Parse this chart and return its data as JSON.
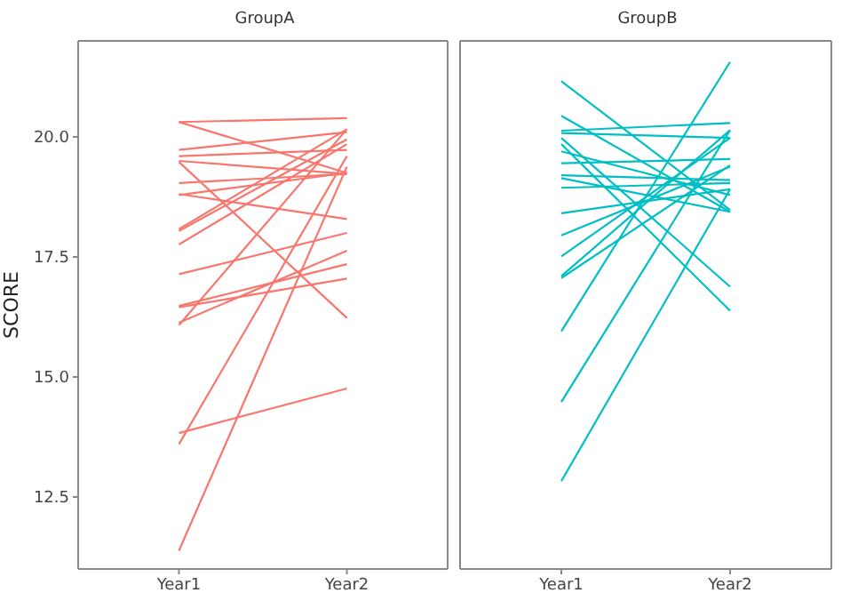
{
  "chart_data": [
    {
      "type": "line",
      "title": "GroupA",
      "ylabel": "SCORE",
      "categories": [
        "Year1",
        "Year2"
      ],
      "ylim": [
        11,
        22
      ],
      "yticks": [
        {
          "value": 12.5,
          "label": "12.5"
        },
        {
          "value": 15,
          "label": "15.0"
        },
        {
          "value": 17.5,
          "label": "17.5"
        },
        {
          "value": 20,
          "label": "20.0"
        }
      ],
      "marker": "none",
      "line_style": "solid",
      "series": [
        {
          "color": "#f8766d",
          "values": [
            20.31,
            20.39
          ]
        },
        {
          "color": "#f8766d",
          "values": [
            20.31,
            19.25
          ]
        },
        {
          "color": "#f8766d",
          "values": [
            19.73,
            20.1
          ]
        },
        {
          "color": "#f8766d",
          "values": [
            19.6,
            19.73
          ]
        },
        {
          "color": "#f8766d",
          "values": [
            19.5,
            19.23
          ]
        },
        {
          "color": "#f8766d",
          "values": [
            19.48,
            16.23
          ]
        },
        {
          "color": "#f8766d",
          "values": [
            19.04,
            19.23
          ]
        },
        {
          "color": "#f8766d",
          "values": [
            18.81,
            18.29
          ]
        },
        {
          "color": "#f8766d",
          "values": [
            18.79,
            19.25
          ]
        },
        {
          "color": "#f8766d",
          "values": [
            18.08,
            20.16
          ]
        },
        {
          "color": "#f8766d",
          "values": [
            18.04,
            19.95
          ]
        },
        {
          "color": "#f8766d",
          "values": [
            17.76,
            19.85
          ]
        },
        {
          "color": "#f8766d",
          "values": [
            17.14,
            18.0
          ]
        },
        {
          "color": "#f8766d",
          "values": [
            16.48,
            17.35
          ]
        },
        {
          "color": "#f8766d",
          "values": [
            16.45,
            17.05
          ]
        },
        {
          "color": "#f8766d",
          "values": [
            16.13,
            17.63
          ]
        },
        {
          "color": "#f8766d",
          "values": [
            16.08,
            20.16
          ]
        },
        {
          "color": "#f8766d",
          "values": [
            13.83,
            14.76
          ]
        },
        {
          "color": "#f8766d",
          "values": [
            13.6,
            19.6
          ]
        },
        {
          "color": "#f8766d",
          "values": [
            11.38,
            19.38
          ]
        }
      ]
    },
    {
      "type": "line",
      "title": "GroupB",
      "categories": [
        "Year1",
        "Year2"
      ],
      "ylim": [
        11,
        22
      ],
      "tick_labels": "x",
      "marker": "none",
      "line_style": "solid",
      "series": [
        {
          "color": "#00bfc4",
          "values": [
            21.16,
            18.48
          ]
        },
        {
          "color": "#00bfc4",
          "values": [
            20.44,
            18.44
          ]
        },
        {
          "color": "#00bfc4",
          "values": [
            20.13,
            20.29
          ]
        },
        {
          "color": "#00bfc4",
          "values": [
            20.08,
            19.98
          ]
        },
        {
          "color": "#00bfc4",
          "values": [
            19.98,
            16.88
          ]
        },
        {
          "color": "#00bfc4",
          "values": [
            19.85,
            16.38
          ]
        },
        {
          "color": "#00bfc4",
          "values": [
            19.7,
            18.79
          ]
        },
        {
          "color": "#00bfc4",
          "values": [
            19.45,
            19.54
          ]
        },
        {
          "color": "#00bfc4",
          "values": [
            19.2,
            19.1
          ]
        },
        {
          "color": "#00bfc4",
          "values": [
            19.14,
            18.44
          ]
        },
        {
          "color": "#00bfc4",
          "values": [
            18.94,
            19.04
          ]
        },
        {
          "color": "#00bfc4",
          "values": [
            18.41,
            18.91
          ]
        },
        {
          "color": "#00bfc4",
          "values": [
            17.95,
            19.38
          ]
        },
        {
          "color": "#00bfc4",
          "values": [
            17.51,
            19.98
          ]
        },
        {
          "color": "#00bfc4",
          "values": [
            17.1,
            20.14
          ]
        },
        {
          "color": "#00bfc4",
          "values": [
            17.06,
            19.41
          ]
        },
        {
          "color": "#00bfc4",
          "values": [
            15.95,
            21.56
          ]
        },
        {
          "color": "#00bfc4",
          "values": [
            14.48,
            20.14
          ]
        },
        {
          "color": "#00bfc4",
          "values": [
            12.83,
            18.91
          ]
        }
      ]
    }
  ]
}
